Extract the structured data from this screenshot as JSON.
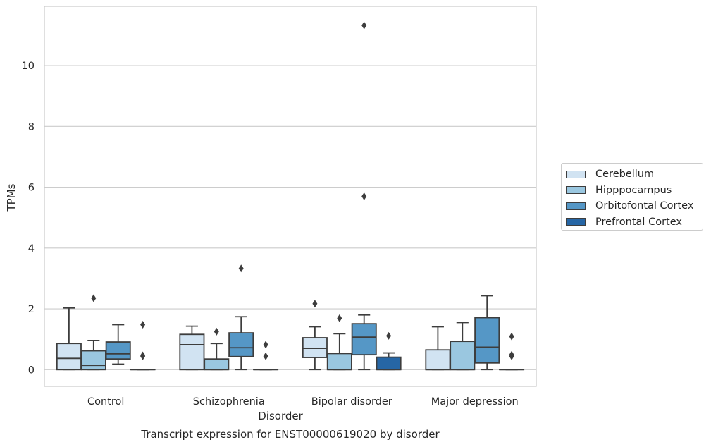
{
  "chart_data": {
    "type": "box",
    "title": "",
    "caption": "Transcript expression for ENST00000619020 by disorder",
    "xlabel": "Disorder",
    "ylabel": "TPMs",
    "ylim": [
      -0.55,
      11.95
    ],
    "yticks": [
      0,
      2,
      4,
      6,
      8,
      10
    ],
    "grid": "horizontal",
    "legend_position": "right",
    "categories": [
      "Control",
      "Schizophrenia",
      "Bipolar disorder",
      "Major depression"
    ],
    "series": [
      {
        "name": "Cerebellum",
        "color": "#d1e3f2",
        "boxes": [
          {
            "min": 0,
            "q1": 0,
            "median": 0.37,
            "q3": 0.86,
            "max": 2.03,
            "outliers": []
          },
          {
            "min": 0,
            "q1": 0,
            "median": 0.82,
            "q3": 1.16,
            "max": 1.43,
            "outliers": []
          },
          {
            "min": 0,
            "q1": 0.4,
            "median": 0.7,
            "q3": 1.05,
            "max": 1.41,
            "outliers": [
              2.17
            ]
          },
          {
            "min": 0,
            "q1": 0,
            "median": 0,
            "q3": 0.65,
            "max": 1.41,
            "outliers": []
          }
        ]
      },
      {
        "name": "Hipppocampus",
        "color": "#9ac7e0",
        "boxes": [
          {
            "min": 0,
            "q1": 0,
            "median": 0.14,
            "q3": 0.62,
            "max": 0.96,
            "outliers": [
              2.35
            ]
          },
          {
            "min": 0,
            "q1": 0,
            "median": 0,
            "q3": 0.35,
            "max": 0.86,
            "outliers": [
              1.25
            ]
          },
          {
            "min": 0,
            "q1": 0,
            "median": 0,
            "q3": 0.53,
            "max": 1.18,
            "outliers": [
              1.69
            ]
          },
          {
            "min": 0,
            "q1": 0,
            "median": 0,
            "q3": 0.93,
            "max": 1.55,
            "outliers": []
          }
        ]
      },
      {
        "name": "Orbitofontal Cortex",
        "color": "#5597c6",
        "boxes": [
          {
            "min": 0.18,
            "q1": 0.35,
            "median": 0.52,
            "q3": 0.91,
            "max": 1.48,
            "outliers": []
          },
          {
            "min": 0,
            "q1": 0.43,
            "median": 0.72,
            "q3": 1.21,
            "max": 1.74,
            "outliers": [
              3.33
            ]
          },
          {
            "min": 0,
            "q1": 0.49,
            "median": 1.07,
            "q3": 1.51,
            "max": 1.8,
            "outliers": [
              5.7,
              11.32
            ]
          },
          {
            "min": 0,
            "q1": 0.22,
            "median": 0.74,
            "q3": 1.71,
            "max": 2.43,
            "outliers": []
          }
        ]
      },
      {
        "name": "Prefrontal Cortex",
        "color": "#2666a5",
        "boxes": [
          {
            "min": 0,
            "q1": 0,
            "median": 0,
            "q3": 0,
            "max": 0,
            "outliers": [
              0.44,
              0.47,
              1.48
            ]
          },
          {
            "min": 0,
            "q1": 0,
            "median": 0,
            "q3": 0,
            "max": 0,
            "outliers": [
              0.44,
              0.82
            ]
          },
          {
            "min": 0,
            "q1": 0,
            "median": 0,
            "q3": 0.41,
            "max": 0.55,
            "outliers": [
              1.11
            ]
          },
          {
            "min": 0,
            "q1": 0,
            "median": 0,
            "q3": 0,
            "max": 0,
            "outliers": [
              0.44,
              0.49,
              1.09
            ]
          }
        ]
      }
    ]
  }
}
